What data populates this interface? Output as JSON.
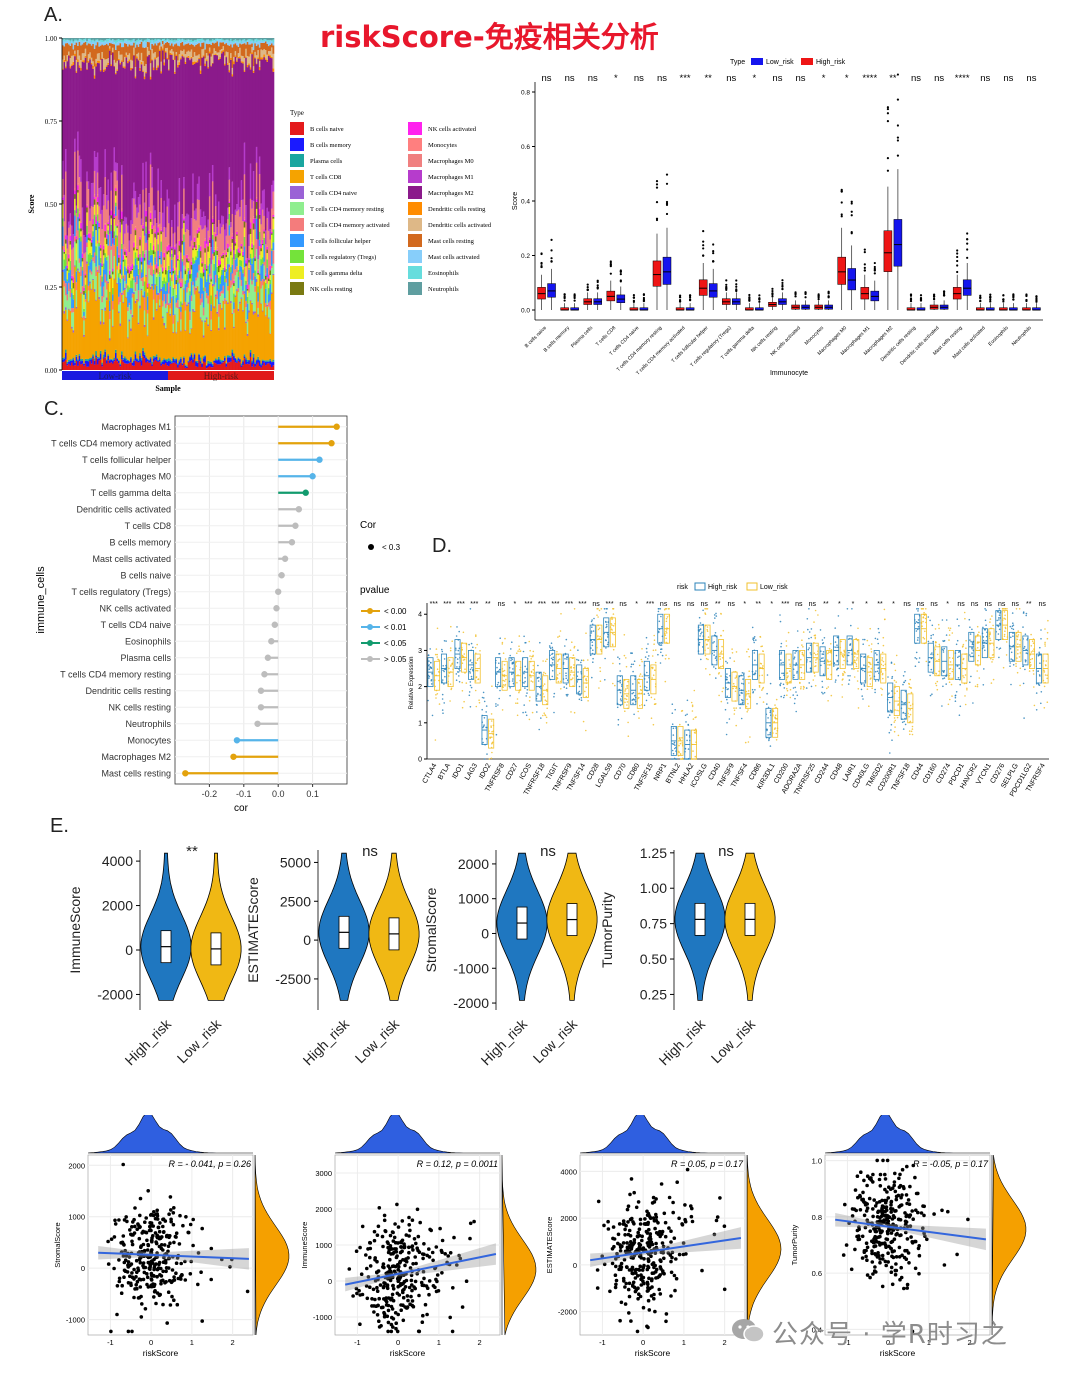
{
  "title": "riskScore-免疫相关分析",
  "watermark": "公众号 · 学R时习之",
  "panel_labels": {
    "A": "A.",
    "C": "C.",
    "D": "D.",
    "E": "E."
  },
  "chart_data": [
    {
      "id": "A_stacked",
      "type": "bar",
      "xlabel": "Sample",
      "ylabel": "Score",
      "y_ticks": [
        "0.00",
        "0.25",
        "0.50",
        "0.75",
        "1.00"
      ],
      "group_labels": [
        "Low-risk",
        "High-risk"
      ],
      "legend_title": "Type",
      "legend": [
        {
          "name": "B cells naive",
          "color": "#e41a1c"
        },
        {
          "name": "B cells memory",
          "color": "#1a1aff"
        },
        {
          "name": "Plasma cells",
          "color": "#1aa6a0"
        },
        {
          "name": "T cells CD8",
          "color": "#f5a300"
        },
        {
          "name": "T cells CD4 naive",
          "color": "#9a62d6"
        },
        {
          "name": "T cells CD4 memory resting",
          "color": "#8fee8f"
        },
        {
          "name": "T cells CD4 memory activated",
          "color": "#f47c7c"
        },
        {
          "name": "T cells follicular helper",
          "color": "#3399ff"
        },
        {
          "name": "T cells regulatory (Tregs)",
          "color": "#74e33a"
        },
        {
          "name": "T cells gamma delta",
          "color": "#eeee22"
        },
        {
          "name": "NK cells resting",
          "color": "#7a7a12"
        },
        {
          "name": "NK cells activated",
          "color": "#ff22ee"
        },
        {
          "name": "Monocytes",
          "color": "#ff7f7f"
        },
        {
          "name": "Macrophages M0",
          "color": "#f08080"
        },
        {
          "name": "Macrophages M1",
          "color": "#b63ccc"
        },
        {
          "name": "Macrophages M2",
          "color": "#8b1a8b"
        },
        {
          "name": "Dendritic cells resting",
          "color": "#ff8c00"
        },
        {
          "name": "Dendritic cells activated",
          "color": "#deb887"
        },
        {
          "name": "Mast cells resting",
          "color": "#d2691e"
        },
        {
          "name": "Mast cells activated",
          "color": "#87cefa"
        },
        {
          "name": "Eosinophils",
          "color": "#66dddd"
        },
        {
          "name": "Neutrophils",
          "color": "#5f9ea0"
        }
      ]
    },
    {
      "id": "A_box",
      "type": "box",
      "xlabel": "Immunocyte",
      "ylabel": "Score",
      "ylim": [
        0,
        0.8
      ],
      "y_ticks": [
        "0.0",
        "0.2",
        "0.4",
        "0.6",
        "0.8"
      ],
      "legend_title": "Type",
      "series": [
        {
          "name": "Low_risk",
          "color": "#1515ee"
        },
        {
          "name": "High_risk",
          "color": "#ee1515"
        }
      ],
      "categories": [
        "B cells naive",
        "B cells memory",
        "Plasma cells",
        "T cells CD8",
        "T cells CD4 naive",
        "T cells CD4 memory resting",
        "T cells CD4 memory activated",
        "T cells follicular helper",
        "T cells regulatory (Tregs)",
        "T cells gamma delta",
        "NK cells resting",
        "NK cells activated",
        "Monocytes",
        "Macrophages M0",
        "Macrophages M1",
        "Macrophages M2",
        "Dendritic cells resting",
        "Dendritic cells activated",
        "Mast cells resting",
        "Mast cells activated",
        "Eosinophils",
        "Neutrophils"
      ],
      "significance": [
        "ns",
        "ns",
        "ns",
        "*",
        "ns",
        "ns",
        "***",
        "**",
        "ns",
        "*",
        "ns",
        "ns",
        "*",
        "*",
        "****",
        "**",
        "ns",
        "ns",
        "****",
        "ns",
        "ns",
        "ns"
      ],
      "medians_high": [
        0.06,
        0.0,
        0.03,
        0.05,
        0.0,
        0.13,
        0.0,
        0.08,
        0.03,
        0.0,
        0.02,
        0.01,
        0.01,
        0.14,
        0.06,
        0.21,
        0.0,
        0.01,
        0.06,
        0.0,
        0.0,
        0.0
      ],
      "medians_low": [
        0.07,
        0.0,
        0.03,
        0.04,
        0.0,
        0.14,
        0.0,
        0.07,
        0.03,
        0.0,
        0.03,
        0.01,
        0.01,
        0.11,
        0.05,
        0.24,
        0.0,
        0.01,
        0.08,
        0.0,
        0.0,
        0.0
      ]
    },
    {
      "id": "C_lollipop",
      "type": "scatter",
      "xlabel": "cor",
      "ylabel": "immune_cells",
      "xlim": [
        -0.3,
        0.2
      ],
      "x_ticks": [
        "-0.2",
        "-0.1",
        "0.0",
        "0.1"
      ],
      "size_legend_title": "Cor",
      "size_legend_label": "< 0.3",
      "pvalue_legend_title": "pvalue",
      "pvalue_legend": [
        {
          "label": "< 0.00",
          "color": "#e3a20c"
        },
        {
          "label": "< 0.01",
          "color": "#56b4e9"
        },
        {
          "label": "< 0.05",
          "color": "#129b6e"
        },
        {
          "label": "> 0.05",
          "color": "#bdbdbd"
        }
      ],
      "items": [
        {
          "name": "Macrophages M1",
          "cor": 0.17,
          "p": "< 0.00"
        },
        {
          "name": "T cells CD4 memory activated",
          "cor": 0.155,
          "p": "< 0.00"
        },
        {
          "name": "T cells follicular helper",
          "cor": 0.12,
          "p": "< 0.01"
        },
        {
          "name": "Macrophages M0",
          "cor": 0.1,
          "p": "< 0.01"
        },
        {
          "name": "T cells gamma delta",
          "cor": 0.08,
          "p": "< 0.05"
        },
        {
          "name": "Dendritic cells activated",
          "cor": 0.06,
          "p": "> 0.05"
        },
        {
          "name": "T cells CD8",
          "cor": 0.05,
          "p": "> 0.05"
        },
        {
          "name": "B cells memory",
          "cor": 0.04,
          "p": "> 0.05"
        },
        {
          "name": "Mast cells activated",
          "cor": 0.02,
          "p": "> 0.05"
        },
        {
          "name": "B cells naive",
          "cor": 0.01,
          "p": "> 0.05"
        },
        {
          "name": "T cells regulatory (Tregs)",
          "cor": 0.0,
          "p": "> 0.05"
        },
        {
          "name": "NK cells activated",
          "cor": -0.005,
          "p": "> 0.05"
        },
        {
          "name": "T cells CD4 naive",
          "cor": -0.01,
          "p": "> 0.05"
        },
        {
          "name": "Eosinophils",
          "cor": -0.02,
          "p": "> 0.05"
        },
        {
          "name": "Plasma cells",
          "cor": -0.03,
          "p": "> 0.05"
        },
        {
          "name": "T cells CD4 memory resting",
          "cor": -0.04,
          "p": "> 0.05"
        },
        {
          "name": "Dendritic cells resting",
          "cor": -0.05,
          "p": "> 0.05"
        },
        {
          "name": "NK cells resting",
          "cor": -0.05,
          "p": "> 0.05"
        },
        {
          "name": "Neutrophils",
          "cor": -0.06,
          "p": "> 0.05"
        },
        {
          "name": "Monocytes",
          "cor": -0.12,
          "p": "< 0.01"
        },
        {
          "name": "Macrophages M2",
          "cor": -0.13,
          "p": "< 0.00"
        },
        {
          "name": "Mast cells resting",
          "cor": -0.27,
          "p": "< 0.00"
        }
      ]
    },
    {
      "id": "D_box",
      "type": "box",
      "ylabel": "Relative Expression",
      "ylim": [
        0,
        4.2
      ],
      "y_ticks": [
        "0",
        "1",
        "2",
        "3",
        "4"
      ],
      "legend_title": "risk",
      "series": [
        {
          "name": "High_risk",
          "color": "#2b83ba"
        },
        {
          "name": "Low_risk",
          "color": "#f2c12e"
        }
      ],
      "categories": [
        "CTLA4",
        "BTLA",
        "IDO1",
        "LAG3",
        "IDO2",
        "TNFRSF8",
        "CD27",
        "ICOS",
        "TNFRSF18",
        "TIGIT",
        "TNFRSF9",
        "TNFSF14",
        "CD28",
        "LGALS9",
        "CD70",
        "CD80",
        "TNFSF15",
        "NRP1",
        "BTNL2",
        "HHLA2",
        "ICOSLG",
        "CD40",
        "TNFSF9",
        "TNFSF4",
        "CD86",
        "KIR3DL1",
        "CD200",
        "ADORA2A",
        "TNFRSF25",
        "CD244",
        "CD48",
        "LAIR1",
        "CD40LG",
        "TMIGD2",
        "CD200R1",
        "TNFSF18",
        "CD44",
        "CD160",
        "CD274",
        "PDCD1",
        "HAVCR2",
        "VTCN1",
        "CD276",
        "SELPLG",
        "PDCD1LG2",
        "TNFRSF4"
      ],
      "significance": [
        "***",
        "***",
        "***",
        "***",
        "**",
        "ns",
        "*",
        "***",
        "***",
        "***",
        "***",
        "***",
        "ns",
        "***",
        "ns",
        "*",
        "***",
        "ns",
        "ns",
        "ns",
        "ns",
        "**",
        "ns",
        "*",
        "**",
        "*",
        "***",
        "ns",
        "ns",
        "**",
        "*",
        "*",
        "*",
        "**",
        "*",
        "ns",
        "ns",
        "ns",
        "*",
        "ns",
        "ns",
        "ns",
        "ns",
        "ns",
        "**",
        "ns"
      ],
      "medians_high": [
        2.4,
        2.5,
        2.9,
        2.6,
        0.8,
        2.4,
        2.4,
        2.4,
        2.0,
        2.6,
        2.5,
        2.2,
        3.3,
        3.5,
        1.9,
        1.9,
        2.3,
        3.6,
        0.5,
        0.4,
        3.3,
        3.0,
        2.1,
        1.9,
        2.6,
        1.0,
        2.6,
        2.6,
        2.8,
        2.7,
        3.0,
        3.0,
        2.5,
        2.6,
        1.7,
        1.5,
        3.6,
        2.8,
        2.7,
        2.6,
        3.1,
        3.2,
        3.7,
        3.1,
        3.0,
        2.5
      ],
      "medians_low": [
        2.3,
        2.4,
        2.8,
        2.5,
        0.7,
        2.3,
        2.3,
        2.3,
        1.9,
        2.5,
        2.4,
        2.1,
        3.3,
        3.5,
        1.8,
        1.8,
        2.2,
        3.6,
        0.5,
        0.4,
        3.3,
        2.9,
        2.0,
        1.8,
        2.5,
        1.0,
        2.5,
        2.6,
        2.8,
        2.6,
        2.9,
        2.9,
        2.4,
        2.5,
        1.6,
        1.4,
        3.6,
        2.7,
        2.6,
        2.5,
        3.0,
        3.2,
        3.7,
        3.1,
        2.9,
        2.5
      ]
    },
    {
      "id": "E_violins",
      "type": "violin",
      "categories": [
        "High_risk",
        "Low_risk"
      ],
      "colors": {
        "High_risk": "#1f77c0",
        "Low_risk": "#f0b814"
      },
      "panels": [
        {
          "ylabel": "ImmuneScore",
          "sig": "**",
          "ylim": [
            -2700,
            4500
          ],
          "y_ticks": [
            -2000,
            0,
            2000,
            4000
          ],
          "median": [
            150,
            50
          ]
        },
        {
          "ylabel": "ESTIMATEScore",
          "sig": "ns",
          "ylim": [
            -4500,
            5800
          ],
          "y_ticks": [
            -2500,
            0,
            2500,
            5000
          ],
          "median": [
            500,
            400
          ]
        },
        {
          "ylabel": "StromalScore",
          "sig": "ns",
          "ylim": [
            -2200,
            2400
          ],
          "y_ticks": [
            -2000,
            -1000,
            0,
            1000,
            2000
          ],
          "median": [
            300,
            400
          ]
        },
        {
          "ylabel": "TumorPurity",
          "sig": "ns",
          "ylim": [
            0.14,
            1.27
          ],
          "y_ticks": [
            "0.25",
            "0.50",
            "0.75",
            "1.00",
            "1.25"
          ],
          "median": [
            0.78,
            0.78
          ]
        }
      ]
    },
    {
      "id": "E_scatter",
      "type": "scatter",
      "xlabel": "riskScore",
      "x_ticks": [
        -1,
        0,
        1,
        2
      ],
      "panels": [
        {
          "ylabel": "StromalScore",
          "annotation": "R = - 0.041, p = 0.26",
          "ylim": [
            -1300,
            2200
          ],
          "y_ticks": [
            -1000,
            0,
            1000,
            2000
          ],
          "fit": [
            300,
            180
          ]
        },
        {
          "ylabel": "ImmuneScore",
          "annotation": "R = 0.12, p = 0.0011",
          "ylim": [
            -1500,
            3500
          ],
          "y_ticks": [
            -1000,
            0,
            1000,
            2000,
            3000
          ],
          "fit": [
            -100,
            750
          ]
        },
        {
          "ylabel": "ESTIMATEScore",
          "annotation": "R = 0.05, p = 0.17",
          "ylim": [
            -3000,
            4700
          ],
          "y_ticks": [
            -2000,
            0,
            2000,
            4000
          ],
          "fit": [
            200,
            1150
          ]
        },
        {
          "ylabel": "TumorPurity",
          "annotation": "R = -0.05, p = 0.17",
          "ylim": [
            0.38,
            1.02
          ],
          "y_ticks": [
            "0.4",
            "0.6",
            "0.8",
            "1.0"
          ],
          "fit": [
            0.79,
            0.72
          ]
        }
      ]
    }
  ]
}
